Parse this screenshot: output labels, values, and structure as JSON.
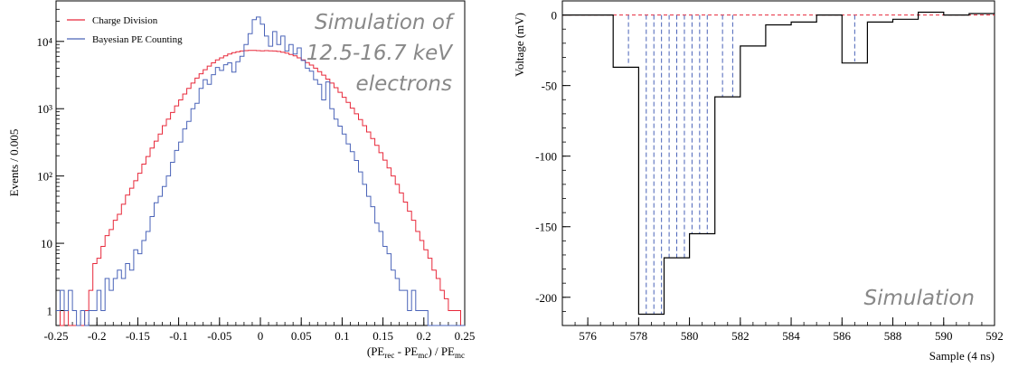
{
  "chart_data": [
    {
      "type": "histogram",
      "title": "",
      "xlabel": "(PE",
      "xlabel_sub1": "rec",
      "xlabel_mid": " - PE",
      "xlabel_sub2": "mc",
      "xlabel_end": ") / PE",
      "xlabel_sub3": "mc",
      "ylabel": "Events / 0.005",
      "x_range": [
        -0.25,
        0.25
      ],
      "y_scale": "log",
      "y_range": [
        0.6,
        40000
      ],
      "x_ticks": [
        "-0.25",
        "-0.2",
        "-0.15",
        "-0.1",
        "-0.05",
        "0",
        "0.05",
        "0.1",
        "0.15",
        "0.2",
        "0.25"
      ],
      "y_ticks": [
        "1",
        "10",
        "10²",
        "10³",
        "10⁴"
      ],
      "legend": {
        "position": "top-left"
      },
      "annotation": [
        "Simulation of",
        "12.5-16.7 keV",
        "electrons"
      ],
      "series": [
        {
          "name": "Charge Division",
          "color": "#e8283a",
          "x": [
            -0.25,
            -0.245,
            -0.24,
            -0.235,
            -0.23,
            -0.225,
            -0.22,
            -0.215,
            -0.21,
            -0.205,
            -0.2,
            -0.195,
            -0.19,
            -0.185,
            -0.18,
            -0.175,
            -0.17,
            -0.165,
            -0.16,
            -0.155,
            -0.15,
            -0.145,
            -0.14,
            -0.135,
            -0.13,
            -0.125,
            -0.12,
            -0.115,
            -0.11,
            -0.105,
            -0.1,
            -0.095,
            -0.09,
            -0.085,
            -0.08,
            -0.075,
            -0.07,
            -0.065,
            -0.06,
            -0.055,
            -0.05,
            -0.045,
            -0.04,
            -0.035,
            -0.03,
            -0.025,
            -0.02,
            -0.015,
            -0.01,
            -0.005,
            0,
            0.005,
            0.01,
            0.015,
            0.02,
            0.025,
            0.03,
            0.035,
            0.04,
            0.045,
            0.05,
            0.055,
            0.06,
            0.065,
            0.07,
            0.075,
            0.08,
            0.085,
            0.09,
            0.095,
            0.1,
            0.105,
            0.11,
            0.115,
            0.12,
            0.125,
            0.13,
            0.135,
            0.14,
            0.145,
            0.15,
            0.155,
            0.16,
            0.165,
            0.17,
            0.175,
            0.18,
            0.185,
            0.19,
            0.195,
            0.2,
            0.205,
            0.21,
            0.215,
            0.22,
            0.225,
            0.23,
            0.235,
            0.24,
            0.245
          ],
          "values": [
            1,
            0,
            1,
            0,
            0,
            0,
            0,
            1,
            2,
            5,
            6,
            9,
            13,
            16,
            22,
            27,
            38,
            52,
            66,
            85,
            110,
            150,
            195,
            260,
            330,
            420,
            560,
            700,
            880,
            1100,
            1350,
            1650,
            2000,
            2400,
            2850,
            3300,
            3800,
            4300,
            4800,
            5300,
            5700,
            6100,
            6500,
            6800,
            7000,
            7200,
            7300,
            7350,
            7350,
            7300,
            7250,
            7300,
            7250,
            7200,
            7100,
            6900,
            6700,
            6400,
            6100,
            5700,
            5300,
            4850,
            4450,
            4000,
            3550,
            3150,
            2750,
            2400,
            2050,
            1750,
            1480,
            1240,
            1020,
            840,
            690,
            560,
            450,
            360,
            285,
            222,
            172,
            132,
            100,
            75,
            56,
            41,
            30,
            22,
            15,
            11,
            8,
            6,
            4,
            3,
            2,
            1.5,
            1,
            1,
            1,
            0
          ]
        },
        {
          "name": "Bayesian PE Counting",
          "color": "#4a63b8",
          "x": [
            -0.25,
            -0.245,
            -0.24,
            -0.235,
            -0.23,
            -0.225,
            -0.22,
            -0.215,
            -0.21,
            -0.205,
            -0.2,
            -0.195,
            -0.19,
            -0.185,
            -0.18,
            -0.175,
            -0.17,
            -0.165,
            -0.16,
            -0.155,
            -0.15,
            -0.145,
            -0.14,
            -0.135,
            -0.13,
            -0.125,
            -0.12,
            -0.115,
            -0.11,
            -0.105,
            -0.1,
            -0.095,
            -0.09,
            -0.085,
            -0.08,
            -0.075,
            -0.07,
            -0.065,
            -0.06,
            -0.055,
            -0.05,
            -0.045,
            -0.04,
            -0.035,
            -0.03,
            -0.025,
            -0.02,
            -0.015,
            -0.01,
            -0.005,
            0,
            0.005,
            0.01,
            0.015,
            0.02,
            0.025,
            0.03,
            0.035,
            0.04,
            0.045,
            0.05,
            0.055,
            0.06,
            0.065,
            0.07,
            0.075,
            0.08,
            0.085,
            0.09,
            0.095,
            0.1,
            0.105,
            0.11,
            0.115,
            0.12,
            0.125,
            0.13,
            0.135,
            0.14,
            0.145,
            0.15,
            0.155,
            0.16,
            0.165,
            0.17,
            0.175,
            0.18,
            0.185,
            0.19,
            0.195,
            0.2,
            0.205,
            0.21,
            0.215,
            0.22,
            0.225,
            0.23,
            0.235,
            0.24,
            0.245
          ],
          "values": [
            1,
            2,
            1,
            2,
            1,
            0,
            1,
            0,
            1,
            1,
            2,
            1,
            3,
            2,
            3,
            4,
            3,
            5,
            4,
            8,
            7,
            11,
            15,
            25,
            40,
            50,
            70,
            100,
            160,
            240,
            320,
            500,
            650,
            1000,
            1200,
            2000,
            2700,
            2300,
            3200,
            4100,
            3700,
            4500,
            4800,
            3500,
            5000,
            6000,
            9000,
            13000,
            21000,
            23000,
            18000,
            12000,
            8500,
            14000,
            9000,
            12000,
            7200,
            9000,
            6500,
            8000,
            5200,
            4000,
            3600,
            2700,
            2300,
            1350,
            2500,
            1000,
            700,
            550,
            420,
            300,
            230,
            170,
            115,
            75,
            50,
            35,
            20,
            15,
            9,
            7,
            4,
            3,
            2,
            2,
            1,
            2,
            1,
            1,
            1,
            0,
            0,
            0,
            0,
            0,
            0,
            0,
            0,
            0
          ]
        }
      ]
    },
    {
      "type": "step-line",
      "title": "",
      "xlabel": "Sample (4 ns)",
      "ylabel": "Voltage (mV)",
      "x_range": [
        575,
        592
      ],
      "y_range": [
        -220,
        10
      ],
      "x_ticks": [
        "576",
        "578",
        "580",
        "582",
        "584",
        "586",
        "588",
        "590",
        "592"
      ],
      "y_ticks": [
        "0",
        "-50",
        "-100",
        "-150",
        "-200"
      ],
      "annotation": "Simulation",
      "baseline_color": "#e8283a",
      "dashed_color": "#4a63b8",
      "waveform": {
        "color": "#000000",
        "x": [
          575,
          576,
          577,
          578,
          579,
          580,
          581,
          582,
          583,
          584,
          585,
          586,
          587,
          588,
          589,
          590,
          591
        ],
        "values": [
          0,
          0,
          -37,
          -212,
          -172,
          -155,
          -58,
          -22,
          -7,
          -5,
          0,
          -34,
          -5,
          -3,
          2,
          0,
          1
        ]
      },
      "dashed_lines": [
        {
          "x": 577.6,
          "value": -36
        },
        {
          "x": 578.3,
          "value": -212
        },
        {
          "x": 578.6,
          "value": -212
        },
        {
          "x": 578.9,
          "value": -212
        },
        {
          "x": 579.2,
          "value": -172
        },
        {
          "x": 579.5,
          "value": -172
        },
        {
          "x": 579.8,
          "value": -172
        },
        {
          "x": 580.1,
          "value": -155
        },
        {
          "x": 580.4,
          "value": -155
        },
        {
          "x": 580.7,
          "value": -155
        },
        {
          "x": 581.3,
          "value": -58
        },
        {
          "x": 581.7,
          "value": -58
        },
        {
          "x": 586.5,
          "value": -33
        }
      ]
    }
  ]
}
